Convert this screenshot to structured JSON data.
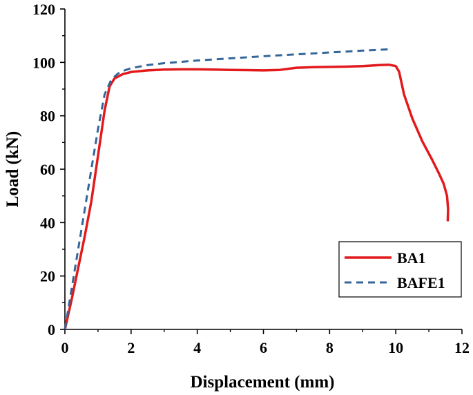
{
  "chart_data": {
    "type": "line",
    "title": "",
    "xlabel": "Displacement (mm)",
    "ylabel": "Load (kN)",
    "xlim": [
      0,
      12
    ],
    "ylim": [
      0,
      120
    ],
    "x_ticks": [
      0,
      2,
      4,
      6,
      8,
      10,
      12
    ],
    "y_ticks": [
      0,
      20,
      40,
      60,
      80,
      100,
      120
    ],
    "x_tick_labels": [
      "0",
      "2",
      "4",
      "6",
      "8",
      "10",
      "12"
    ],
    "y_tick_labels": [
      "0",
      "20",
      "40",
      "60",
      "80",
      "100",
      "120"
    ],
    "grid": false,
    "legend_position": "bottom-right",
    "series": [
      {
        "name": "BA1",
        "color": "#e31a1c",
        "style": "solid",
        "points": [
          [
            0,
            0
          ],
          [
            0.2,
            11
          ],
          [
            0.4,
            23
          ],
          [
            0.6,
            35
          ],
          [
            0.8,
            48
          ],
          [
            1.0,
            65
          ],
          [
            1.2,
            82
          ],
          [
            1.35,
            91
          ],
          [
            1.5,
            94
          ],
          [
            1.75,
            95.6
          ],
          [
            2.0,
            96.4
          ],
          [
            2.5,
            97.0
          ],
          [
            3.0,
            97.3
          ],
          [
            3.5,
            97.4
          ],
          [
            4.0,
            97.4
          ],
          [
            4.5,
            97.3
          ],
          [
            5.0,
            97.2
          ],
          [
            5.5,
            97.1
          ],
          [
            6.0,
            97.0
          ],
          [
            6.5,
            97.2
          ],
          [
            7.0,
            98.0
          ],
          [
            7.5,
            98.2
          ],
          [
            8.0,
            98.3
          ],
          [
            8.5,
            98.4
          ],
          [
            9.0,
            98.6
          ],
          [
            9.5,
            99.0
          ],
          [
            9.8,
            99.1
          ],
          [
            10.0,
            98.6
          ],
          [
            10.1,
            96.5
          ],
          [
            10.25,
            88
          ],
          [
            10.5,
            79
          ],
          [
            10.8,
            70.5
          ],
          [
            11.1,
            63.5
          ],
          [
            11.3,
            58.5
          ],
          [
            11.45,
            54.5
          ],
          [
            11.55,
            50
          ],
          [
            11.58,
            45
          ],
          [
            11.57,
            40.5
          ]
        ]
      },
      {
        "name": "BAFE1",
        "color": "#336699",
        "style": "dashed",
        "points": [
          [
            0,
            0
          ],
          [
            0.2,
            15
          ],
          [
            0.4,
            30
          ],
          [
            0.6,
            45
          ],
          [
            0.8,
            60
          ],
          [
            1.0,
            75
          ],
          [
            1.2,
            88
          ],
          [
            1.4,
            93.5
          ],
          [
            1.6,
            95.8
          ],
          [
            1.8,
            97
          ],
          [
            2.0,
            97.8
          ],
          [
            2.5,
            99.0
          ],
          [
            3.0,
            99.7
          ],
          [
            3.5,
            100.2
          ],
          [
            4.0,
            100.7
          ],
          [
            5.0,
            101.5
          ],
          [
            6.0,
            102.3
          ],
          [
            7.0,
            103.0
          ],
          [
            8.0,
            103.7
          ],
          [
            9.0,
            104.4
          ],
          [
            9.8,
            104.9
          ]
        ]
      }
    ]
  }
}
